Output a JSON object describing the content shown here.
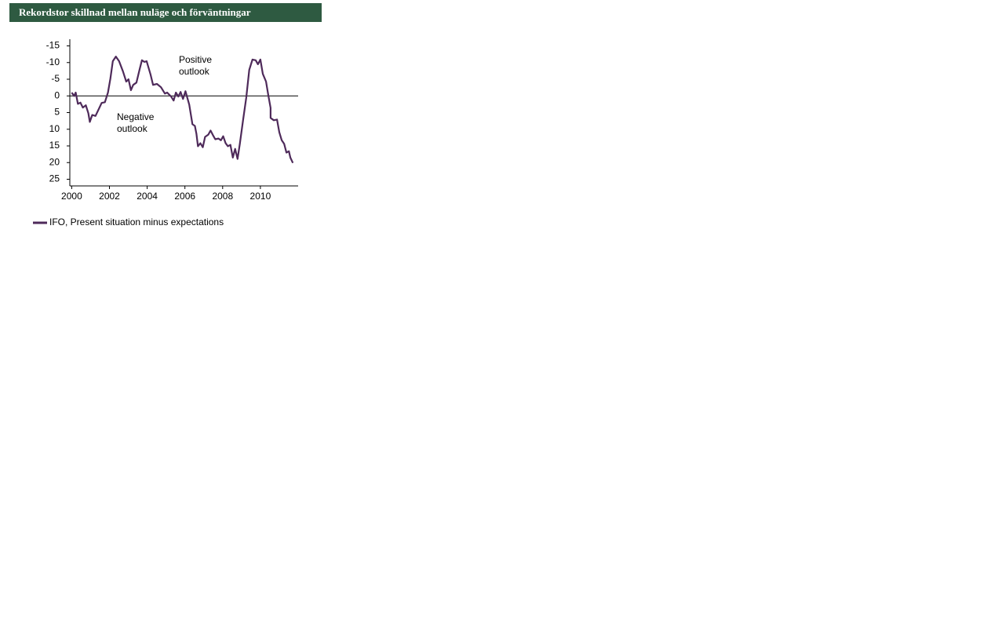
{
  "chart_data": {
    "type": "line",
    "title": "Rekordstor skillnad mellan nuläge och förväntningar",
    "annotations": [
      [
        "Positive",
        "outlook"
      ],
      [
        "Negative",
        "outlook"
      ]
    ],
    "x": [
      2000.0,
      2000.13,
      2000.21,
      2000.33,
      2000.46,
      2000.59,
      2000.75,
      2000.88,
      2000.96,
      2001.09,
      2001.26,
      2001.59,
      2001.76,
      2001.92,
      2002.05,
      2002.18,
      2002.34,
      2002.51,
      2002.72,
      2002.89,
      2003.01,
      2003.14,
      2003.26,
      2003.43,
      2003.6,
      2003.72,
      2003.85,
      2003.97,
      2004.18,
      2004.31,
      2004.52,
      2004.73,
      2004.94,
      2005.06,
      2005.27,
      2005.4,
      2005.52,
      2005.65,
      2005.77,
      2005.9,
      2006.03,
      2006.23,
      2006.4,
      2006.53,
      2006.61,
      2006.69,
      2006.82,
      2006.95,
      2007.07,
      2007.24,
      2007.36,
      2007.49,
      2007.61,
      2007.78,
      2007.91,
      2008.03,
      2008.16,
      2008.28,
      2008.41,
      2008.54,
      2008.66,
      2008.79,
      2008.91,
      2009.08,
      2009.25,
      2009.41,
      2009.58,
      2009.75,
      2009.87,
      2010.0,
      2010.13,
      2010.3,
      2010.42,
      2010.54,
      2010.54,
      2010.71,
      2010.88,
      2011.0,
      2011.13,
      2011.26,
      2011.38,
      2011.51,
      2011.59,
      2011.72
    ],
    "series": [
      {
        "name": "IFO, Present situation minus expectations",
        "color": "#4e2a5a",
        "values": [
          -1,
          0,
          -1,
          2.4,
          2.0,
          3.5,
          2.8,
          5.2,
          7.8,
          5.7,
          6,
          2.1,
          1.9,
          -1,
          -5.2,
          -10.4,
          -11.8,
          -10.4,
          -7.3,
          -4.3,
          -5,
          -1.7,
          -3.3,
          -4,
          -8,
          -10.7,
          -10.2,
          -10.4,
          -6.4,
          -3.3,
          -3.6,
          -2.6,
          -0.7,
          -1,
          0.2,
          1.4,
          -1,
          0.2,
          -1.2,
          0.9,
          -1.4,
          2.6,
          8.5,
          9,
          11.4,
          15.1,
          14.2,
          15.4,
          12.3,
          11.6,
          10.4,
          11.8,
          13,
          12.8,
          13.3,
          12.1,
          14.2,
          15.1,
          14.7,
          18.5,
          15.9,
          18.9,
          14.4,
          7.3,
          0.5,
          -7.8,
          -10.9,
          -10.7,
          -9.5,
          -10.9,
          -6.6,
          -4.3,
          -0.2,
          3.6,
          6.6,
          7.3,
          7.1,
          10.9,
          13.3,
          14.4,
          17,
          16.6,
          18.5,
          20.1
        ]
      }
    ],
    "xlim": [
      1999.9,
      2012
    ],
    "xticks": [
      2000,
      2002,
      2004,
      2006,
      2008,
      2010
    ],
    "ylim": [
      -17,
      27
    ],
    "yticks": [
      -15,
      -10,
      -5,
      0,
      5,
      10,
      15,
      20,
      25
    ],
    "y_inverted": true,
    "zero_line": true
  }
}
